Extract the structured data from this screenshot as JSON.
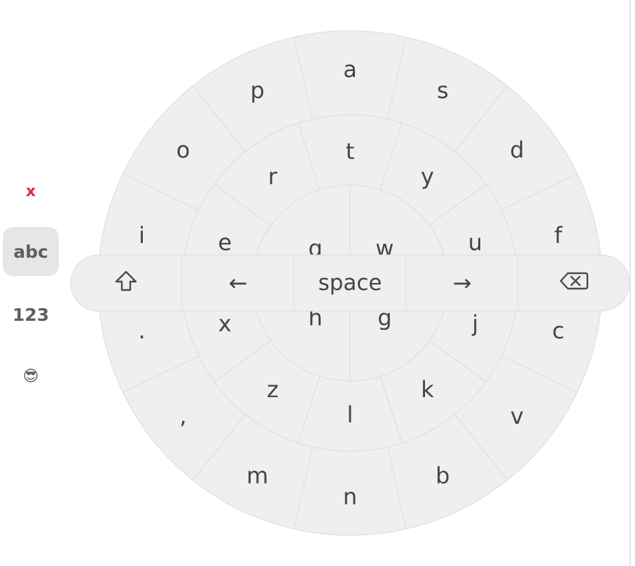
{
  "modes": {
    "close_label": "x",
    "abc_label": "abc",
    "numbers_label": "123",
    "emoji_label": "😎"
  },
  "keyboard": {
    "inner_keys": [
      "q",
      "w",
      "g",
      "h"
    ],
    "middle_keys": [
      "e",
      "r",
      "t",
      "y",
      "u",
      "j",
      "k",
      "l",
      "z",
      "x"
    ],
    "outer_keys": [
      "i",
      "o",
      "p",
      "a",
      "s",
      "d",
      "f",
      "c",
      "v",
      "b",
      "n",
      "m",
      ",",
      "."
    ],
    "bar": {
      "shift_icon": "shift-arrow-icon",
      "left_label": "←",
      "space_label": "space",
      "right_label": "→",
      "backspace_icon": "backspace-icon"
    }
  },
  "colors": {
    "key_fill": "#efefef",
    "key_border": "#e0e0e0",
    "glyph": "#454545",
    "close_red": "#d8333b",
    "mode_active_bg": "#e6e6e8"
  }
}
